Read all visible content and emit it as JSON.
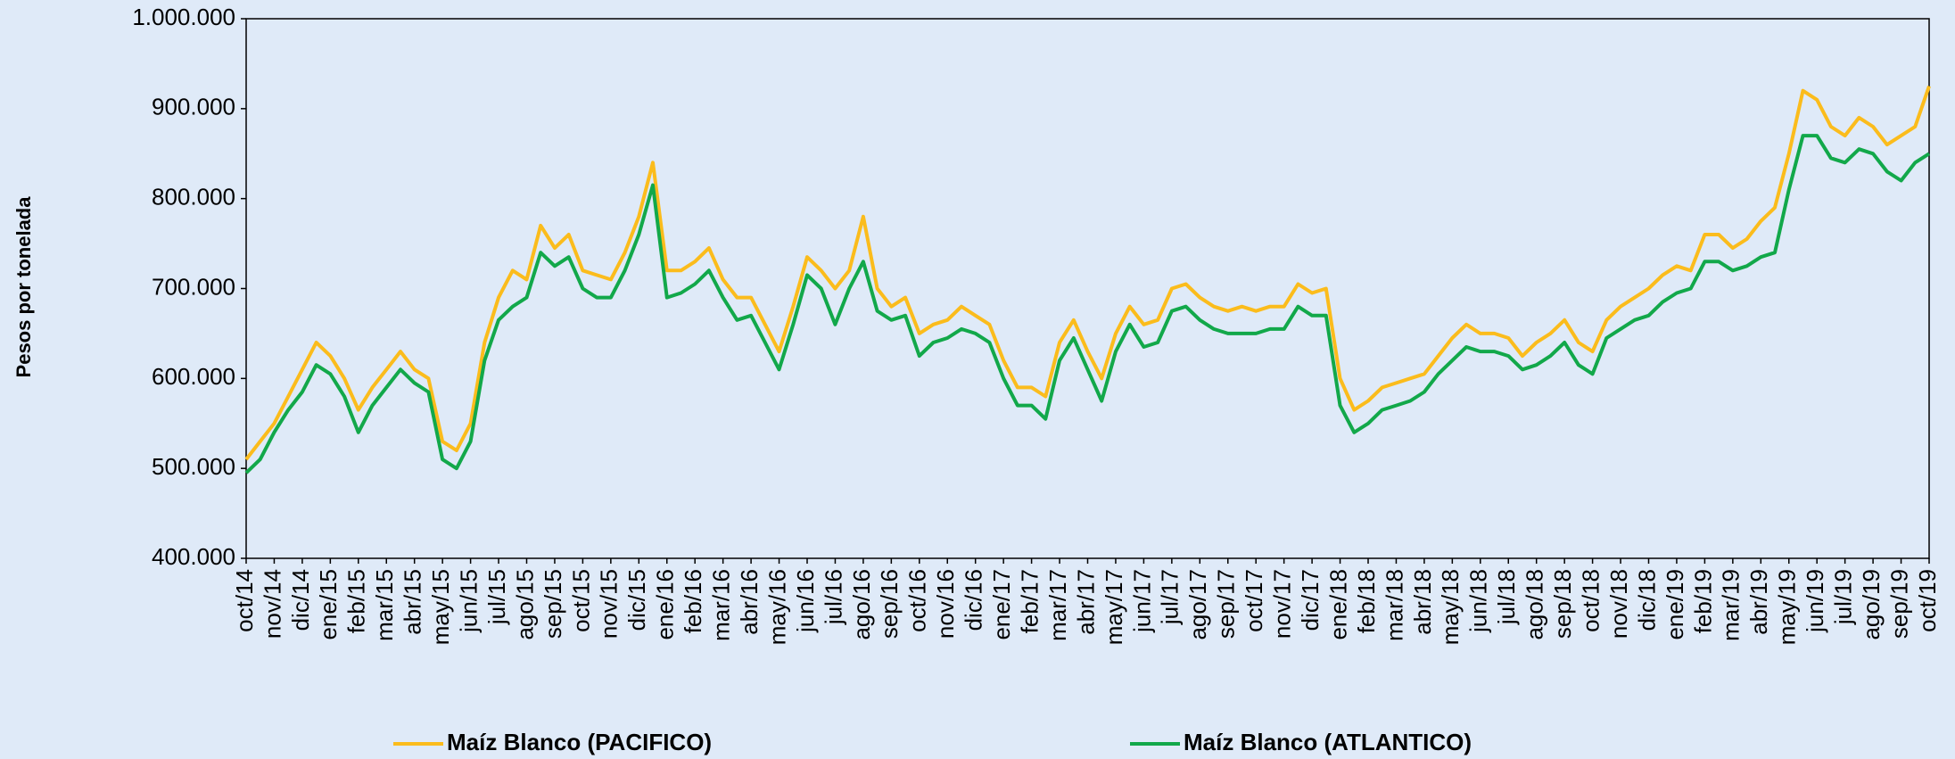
{
  "chart_data": {
    "type": "line",
    "y_label": "Pesos por tonelada",
    "categories": [
      "oct/14",
      null,
      "nov/14",
      null,
      "dic/14",
      null,
      "ene/15",
      null,
      "feb/15",
      null,
      "mar/15",
      null,
      "abr/15",
      null,
      "may/15",
      null,
      "jun/15",
      null,
      "jul/15",
      null,
      "ago/15",
      null,
      "sep/15",
      null,
      "oct/15",
      null,
      "nov/15",
      null,
      "dic/15",
      null,
      "ene/16",
      null,
      "feb/16",
      null,
      "mar/16",
      null,
      "abr/16",
      null,
      "may/16",
      null,
      "jun/16",
      null,
      "jul/16",
      null,
      "ago/16",
      null,
      "sep/16",
      null,
      "oct/16",
      null,
      "nov/16",
      null,
      "dic/16",
      null,
      "ene/17",
      null,
      "feb/17",
      null,
      "mar/17",
      null,
      "abr/17",
      null,
      "may/17",
      null,
      "jun/17",
      null,
      "jul/17",
      null,
      "ago/17",
      null,
      "sep/17",
      null,
      "oct/17",
      null,
      "nov/17",
      null,
      "dic/17",
      null,
      "ene/18",
      null,
      "feb/18",
      null,
      "mar/18",
      null,
      "abr/18",
      null,
      "may/18",
      null,
      "jun/18",
      null,
      "jul/18",
      null,
      "ago/18",
      null,
      "sep/18",
      null,
      "oct/18",
      null,
      "nov/18",
      null,
      "dic/18",
      null,
      "ene/19",
      null,
      "feb/19",
      null,
      "mar/19",
      null,
      "abr/19",
      null,
      "may/19",
      null,
      "jun/19",
      null,
      "jul/19",
      null,
      "ago/19",
      null,
      "sep/19",
      null,
      "oct/19"
    ],
    "series": [
      {
        "name": "Maíz Blanco (PACIFICO)",
        "color": "#fbbc1c",
        "values": [
          510000,
          530000,
          550000,
          580000,
          610000,
          640000,
          625000,
          600000,
          565000,
          590000,
          610000,
          630000,
          610000,
          600000,
          530000,
          520000,
          550000,
          640000,
          690000,
          720000,
          710000,
          770000,
          745000,
          760000,
          720000,
          715000,
          710000,
          740000,
          780000,
          840000,
          720000,
          720000,
          730000,
          745000,
          710000,
          690000,
          690000,
          660000,
          630000,
          680000,
          735000,
          720000,
          700000,
          720000,
          780000,
          700000,
          680000,
          690000,
          650000,
          660000,
          665000,
          680000,
          670000,
          660000,
          620000,
          590000,
          590000,
          580000,
          640000,
          665000,
          630000,
          600000,
          650000,
          680000,
          660000,
          665000,
          700000,
          705000,
          690000,
          680000,
          675000,
          680000,
          675000,
          680000,
          680000,
          705000,
          695000,
          700000,
          600000,
          565000,
          575000,
          590000,
          595000,
          600000,
          605000,
          625000,
          645000,
          660000,
          650000,
          650000,
          645000,
          625000,
          640000,
          650000,
          665000,
          640000,
          630000,
          665000,
          680000,
          690000,
          700000,
          715000,
          725000,
          720000,
          760000,
          760000,
          745000,
          755000,
          775000,
          790000,
          850000,
          920000,
          910000,
          880000,
          870000,
          890000,
          880000,
          860000,
          870000,
          880000,
          925000
        ]
      },
      {
        "name": "Maíz Blanco (ATLANTICO)",
        "color": "#12a84a",
        "values": [
          495000,
          510000,
          540000,
          565000,
          585000,
          615000,
          605000,
          580000,
          540000,
          570000,
          590000,
          610000,
          595000,
          585000,
          510000,
          500000,
          530000,
          620000,
          665000,
          680000,
          690000,
          740000,
          725000,
          735000,
          700000,
          690000,
          690000,
          720000,
          760000,
          815000,
          690000,
          695000,
          705000,
          720000,
          690000,
          665000,
          670000,
          640000,
          610000,
          660000,
          715000,
          700000,
          660000,
          700000,
          730000,
          675000,
          665000,
          670000,
          625000,
          640000,
          645000,
          655000,
          650000,
          640000,
          600000,
          570000,
          570000,
          555000,
          620000,
          645000,
          610000,
          575000,
          630000,
          660000,
          635000,
          640000,
          675000,
          680000,
          665000,
          655000,
          650000,
          650000,
          650000,
          655000,
          655000,
          680000,
          670000,
          670000,
          570000,
          540000,
          550000,
          565000,
          570000,
          575000,
          585000,
          605000,
          620000,
          635000,
          630000,
          630000,
          625000,
          610000,
          615000,
          625000,
          640000,
          615000,
          605000,
          645000,
          655000,
          665000,
          670000,
          685000,
          695000,
          700000,
          730000,
          730000,
          720000,
          725000,
          735000,
          740000,
          810000,
          870000,
          870000,
          845000,
          840000,
          855000,
          850000,
          830000,
          820000,
          840000,
          850000
        ]
      }
    ],
    "ylim": [
      400000,
      1000000
    ],
    "yticks": [
      {
        "value": 400000,
        "label": "400.000"
      },
      {
        "value": 500000,
        "label": "500.000"
      },
      {
        "value": 600000,
        "label": "600.000"
      },
      {
        "value": 700000,
        "label": "700.000"
      },
      {
        "value": 800000,
        "label": "800.000"
      },
      {
        "value": 900000,
        "label": "900.000"
      },
      {
        "value": 1000000,
        "label": "1.000.000"
      }
    ],
    "grid": false,
    "legend": "bottom"
  }
}
